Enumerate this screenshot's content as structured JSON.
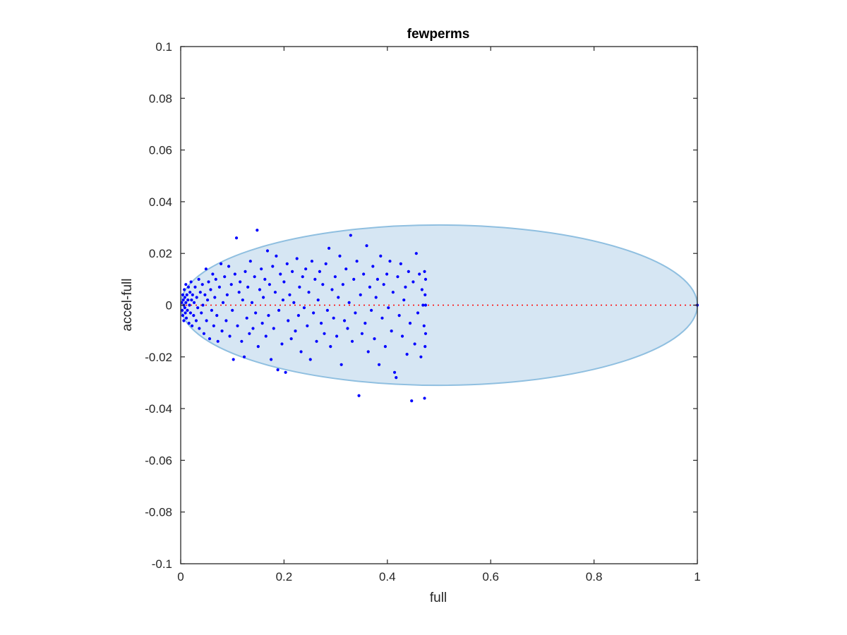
{
  "chart_data": {
    "type": "scatter",
    "title": "fewperms",
    "xlabel": "full",
    "ylabel": "accel-full",
    "xlim": [
      0,
      1
    ],
    "ylim": [
      -0.1,
      0.1
    ],
    "xticks": [
      0,
      0.2,
      0.4,
      0.6,
      0.8,
      1
    ],
    "xtick_labels": [
      "0",
      "0.2",
      "0.4",
      "0.6",
      "0.8",
      "1"
    ],
    "yticks": [
      -0.1,
      -0.08,
      -0.06,
      -0.04,
      -0.02,
      0,
      0.02,
      0.04,
      0.06,
      0.08,
      0.1
    ],
    "ytick_labels": [
      "-0.1",
      "-0.08",
      "-0.06",
      "-0.04",
      "-0.02",
      "0",
      "0.02",
      "0.04",
      "0.06",
      "0.08",
      "0.1"
    ],
    "grid": false,
    "legend": "none",
    "reference_line": {
      "y": 0,
      "x_range": [
        0,
        1
      ],
      "style": "dotted",
      "color": "#ff0000"
    },
    "ellipse": {
      "center": [
        0.5,
        0
      ],
      "x_radius": 0.5,
      "y_radius": 0.031,
      "fill": "#d6e6f3",
      "edge": "#8fbfe0"
    },
    "series": [
      {
        "color": "#0000ff",
        "points": [
          [
            0.002,
            0.001
          ],
          [
            0.003,
            -0.002
          ],
          [
            0.004,
            0.004
          ],
          [
            0.004,
            -0.004
          ],
          [
            0.005,
            0.002
          ],
          [
            0.006,
            0.0
          ],
          [
            0.006,
            -0.006
          ],
          [
            0.007,
            0.006
          ],
          [
            0.008,
            -0.001
          ],
          [
            0.008,
            0.003
          ],
          [
            0.009,
            -0.003
          ],
          [
            0.01,
            0.008
          ],
          [
            0.01,
            0.001
          ],
          [
            0.011,
            -0.005
          ],
          [
            0.012,
            0.004
          ],
          [
            0.013,
            -0.002
          ],
          [
            0.014,
            0.002
          ],
          [
            0.015,
            0.007
          ],
          [
            0.016,
            -0.007
          ],
          [
            0.017,
            0.0
          ],
          [
            0.018,
            0.005
          ],
          [
            0.019,
            -0.003
          ],
          [
            0.02,
            0.009
          ],
          [
            0.021,
            0.002
          ],
          [
            0.022,
            -0.008
          ],
          [
            0.023,
            0.004
          ],
          [
            0.025,
            -0.004
          ],
          [
            0.026,
            0.001
          ],
          [
            0.028,
            0.007
          ],
          [
            0.03,
            -0.006
          ],
          [
            0.031,
            0.003
          ],
          [
            0.033,
            -0.001
          ],
          [
            0.035,
            0.01
          ],
          [
            0.036,
            -0.009
          ],
          [
            0.038,
            0.005
          ],
          [
            0.04,
            -0.003
          ],
          [
            0.042,
            0.008
          ],
          [
            0.043,
            0.0
          ],
          [
            0.045,
            -0.011
          ],
          [
            0.047,
            0.004
          ],
          [
            0.049,
            0.014
          ],
          [
            0.05,
            -0.006
          ],
          [
            0.052,
            0.002
          ],
          [
            0.054,
            0.009
          ],
          [
            0.056,
            -0.013
          ],
          [
            0.058,
            0.006
          ],
          [
            0.06,
            -0.002
          ],
          [
            0.062,
            0.012
          ],
          [
            0.064,
            -0.008
          ],
          [
            0.066,
            0.003
          ],
          [
            0.068,
            0.01
          ],
          [
            0.07,
            -0.004
          ],
          [
            0.072,
            -0.014
          ],
          [
            0.075,
            0.007
          ],
          [
            0.078,
            0.016
          ],
          [
            0.08,
            -0.01
          ],
          [
            0.082,
            0.001
          ],
          [
            0.085,
            0.011
          ],
          [
            0.088,
            -0.006
          ],
          [
            0.09,
            0.004
          ],
          [
            0.093,
            0.015
          ],
          [
            0.095,
            -0.012
          ],
          [
            0.098,
            0.008
          ],
          [
            0.1,
            -0.002
          ],
          [
            0.102,
            -0.021
          ],
          [
            0.105,
            0.012
          ],
          [
            0.108,
            0.026
          ],
          [
            0.11,
            -0.008
          ],
          [
            0.113,
            0.005
          ],
          [
            0.115,
            0.009
          ],
          [
            0.118,
            -0.014
          ],
          [
            0.12,
            0.002
          ],
          [
            0.123,
            -0.02
          ],
          [
            0.125,
            0.013
          ],
          [
            0.128,
            -0.005
          ],
          [
            0.13,
            0.007
          ],
          [
            0.133,
            -0.011
          ],
          [
            0.135,
            0.017
          ],
          [
            0.138,
            0.001
          ],
          [
            0.14,
            -0.009
          ],
          [
            0.143,
            0.011
          ],
          [
            0.145,
            -0.003
          ],
          [
            0.148,
            0.029
          ],
          [
            0.15,
            -0.016
          ],
          [
            0.153,
            0.006
          ],
          [
            0.156,
            0.014
          ],
          [
            0.158,
            -0.007
          ],
          [
            0.16,
            0.003
          ],
          [
            0.163,
            0.01
          ],
          [
            0.165,
            -0.012
          ],
          [
            0.168,
            0.021
          ],
          [
            0.17,
            -0.004
          ],
          [
            0.172,
            0.008
          ],
          [
            0.175,
            -0.021
          ],
          [
            0.178,
            0.015
          ],
          [
            0.18,
            -0.009
          ],
          [
            0.183,
            0.005
          ],
          [
            0.185,
            0.019
          ],
          [
            0.188,
            -0.025
          ],
          [
            0.19,
            -0.002
          ],
          [
            0.193,
            0.012
          ],
          [
            0.196,
            -0.015
          ],
          [
            0.198,
            0.002
          ],
          [
            0.2,
            0.009
          ],
          [
            0.203,
            -0.026
          ],
          [
            0.206,
            0.016
          ],
          [
            0.208,
            -0.006
          ],
          [
            0.211,
            0.004
          ],
          [
            0.214,
            -0.013
          ],
          [
            0.216,
            0.013
          ],
          [
            0.219,
            0.001
          ],
          [
            0.222,
            -0.01
          ],
          [
            0.225,
            0.018
          ],
          [
            0.228,
            -0.004
          ],
          [
            0.23,
            0.007
          ],
          [
            0.233,
            -0.018
          ],
          [
            0.236,
            0.011
          ],
          [
            0.239,
            -0.001
          ],
          [
            0.242,
            0.014
          ],
          [
            0.245,
            -0.008
          ],
          [
            0.248,
            0.005
          ],
          [
            0.251,
            -0.021
          ],
          [
            0.254,
            0.017
          ],
          [
            0.257,
            -0.003
          ],
          [
            0.26,
            0.01
          ],
          [
            0.263,
            -0.014
          ],
          [
            0.266,
            0.002
          ],
          [
            0.269,
            0.013
          ],
          [
            0.272,
            -0.007
          ],
          [
            0.275,
            0.008
          ],
          [
            0.278,
            -0.011
          ],
          [
            0.281,
            0.016
          ],
          [
            0.284,
            -0.002
          ],
          [
            0.287,
            0.022
          ],
          [
            0.29,
            -0.016
          ],
          [
            0.293,
            0.006
          ],
          [
            0.296,
            -0.005
          ],
          [
            0.299,
            0.011
          ],
          [
            0.302,
            -0.012
          ],
          [
            0.305,
            0.003
          ],
          [
            0.308,
            0.019
          ],
          [
            0.311,
            -0.023
          ],
          [
            0.314,
            0.008
          ],
          [
            0.317,
            -0.006
          ],
          [
            0.32,
            0.014
          ],
          [
            0.323,
            -0.009
          ],
          [
            0.326,
            0.001
          ],
          [
            0.329,
            0.027
          ],
          [
            0.332,
            -0.014
          ],
          [
            0.335,
            0.01
          ],
          [
            0.338,
            -0.003
          ],
          [
            0.341,
            0.017
          ],
          [
            0.345,
            -0.035
          ],
          [
            0.348,
            0.004
          ],
          [
            0.351,
            -0.011
          ],
          [
            0.354,
            0.012
          ],
          [
            0.357,
            -0.007
          ],
          [
            0.36,
            0.023
          ],
          [
            0.363,
            -0.018
          ],
          [
            0.366,
            0.007
          ],
          [
            0.369,
            -0.002
          ],
          [
            0.372,
            0.015
          ],
          [
            0.375,
            -0.013
          ],
          [
            0.378,
            0.003
          ],
          [
            0.381,
            0.01
          ],
          [
            0.384,
            -0.023
          ],
          [
            0.387,
            0.019
          ],
          [
            0.39,
            -0.005
          ],
          [
            0.393,
            0.008
          ],
          [
            0.396,
            -0.016
          ],
          [
            0.399,
            0.012
          ],
          [
            0.402,
            -0.001
          ],
          [
            0.405,
            0.017
          ],
          [
            0.408,
            -0.01
          ],
          [
            0.411,
            0.005
          ],
          [
            0.414,
            -0.026
          ],
          [
            0.417,
            -0.028
          ],
          [
            0.42,
            0.011
          ],
          [
            0.423,
            -0.004
          ],
          [
            0.426,
            0.016
          ],
          [
            0.429,
            -0.012
          ],
          [
            0.432,
            0.002
          ],
          [
            0.435,
            0.007
          ],
          [
            0.438,
            -0.019
          ],
          [
            0.441,
            0.013
          ],
          [
            0.444,
            -0.007
          ],
          [
            0.447,
            -0.037
          ],
          [
            0.45,
            0.009
          ],
          [
            0.453,
            -0.015
          ],
          [
            0.456,
            0.02
          ],
          [
            0.459,
            -0.003
          ],
          [
            0.462,
            0.012
          ],
          [
            0.465,
            -0.02
          ],
          [
            0.467,
            0.006
          ],
          [
            0.469,
            0.0
          ],
          [
            0.471,
            -0.008
          ],
          [
            0.472,
            0.013
          ],
          [
            0.472,
            -0.036
          ],
          [
            0.473,
            -0.016
          ],
          [
            0.473,
            0.004
          ],
          [
            0.474,
            -0.011
          ],
          [
            0.474,
            0.01
          ],
          [
            0.474,
            0.0
          ],
          [
            1.0,
            0.0
          ]
        ]
      }
    ]
  }
}
